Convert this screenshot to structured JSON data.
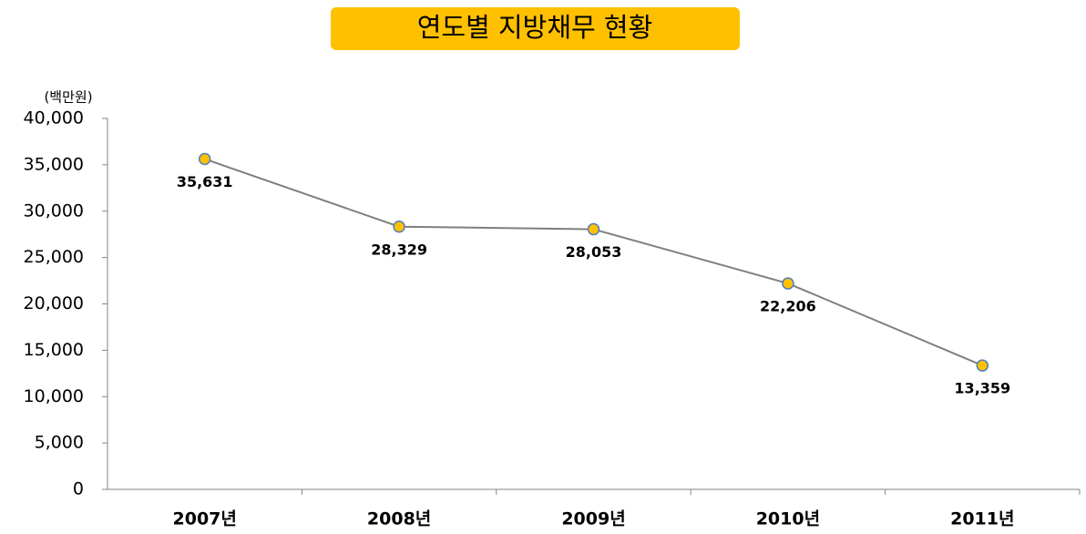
{
  "chart_data": {
    "type": "line",
    "title": "연도별 지방채무 현황",
    "y_unit": "(백만원)",
    "categories": [
      "2007년",
      "2008년",
      "2009년",
      "2010년",
      "2011년"
    ],
    "values": [
      35631,
      28329,
      28053,
      22206,
      13359
    ],
    "value_labels": [
      "35,631",
      "28,329",
      "28,053",
      "22,206",
      "13,359"
    ],
    "color": "#7f7f7f",
    "marker_color": "#ffc000",
    "marker_edge": "#4f81bd",
    "title_bg": "#ffc000",
    "ylim": [
      0,
      40000
    ],
    "yticks": [
      0,
      {
        "value": 5000,
        "label": "5,000"
      },
      {
        "value": 10000,
        "label": "10,000"
      },
      {
        "value": 15000,
        "label": "15,000"
      },
      {
        "value": 20000,
        "label": "20,000"
      },
      {
        "value": 25000,
        "label": "25,000"
      },
      {
        "value": 30000,
        "label": "30,000"
      },
      {
        "value": 35000,
        "label": "35,000"
      },
      {
        "value": 40000,
        "label": "40,000"
      }
    ],
    "grid": false
  }
}
